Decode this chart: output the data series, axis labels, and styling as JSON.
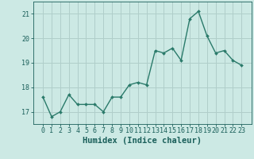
{
  "x": [
    0,
    1,
    2,
    3,
    4,
    5,
    6,
    7,
    8,
    9,
    10,
    11,
    12,
    13,
    14,
    15,
    16,
    17,
    18,
    19,
    20,
    21,
    22,
    23
  ],
  "y": [
    17.6,
    16.8,
    17.0,
    17.7,
    17.3,
    17.3,
    17.3,
    17.0,
    17.6,
    17.6,
    18.1,
    18.2,
    18.1,
    19.5,
    19.4,
    19.6,
    19.1,
    20.8,
    21.1,
    20.1,
    19.4,
    19.5,
    19.1,
    18.9
  ],
  "line_color": "#2a7a6a",
  "marker": "D",
  "marker_size": 2.0,
  "line_width": 1.0,
  "bg_color": "#cce9e4",
  "grid_color": "#b0ceca",
  "xlabel": "Humidex (Indice chaleur)",
  "xlabel_color": "#1a5f5a",
  "xlabel_fontsize": 7.5,
  "tick_color": "#1a5f5a",
  "tick_fontsize": 6.0,
  "ylim": [
    16.5,
    21.5
  ],
  "yticks": [
    17,
    18,
    19,
    20,
    21
  ],
  "xticks": [
    0,
    1,
    2,
    3,
    4,
    5,
    6,
    7,
    8,
    9,
    10,
    11,
    12,
    13,
    14,
    15,
    16,
    17,
    18,
    19,
    20,
    21,
    22,
    23
  ]
}
